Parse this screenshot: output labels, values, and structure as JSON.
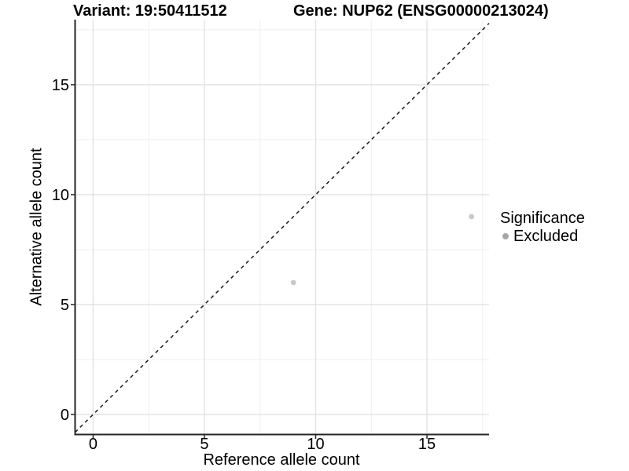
{
  "chart_data": {
    "type": "scatter",
    "title_left": "Variant: 19:50411512",
    "title_right": "Gene: NUP62 (ENSG00000213024)",
    "xlabel": "Reference allele count",
    "ylabel": "Alternative allele count",
    "xlim": [
      -0.81,
      17.79
    ],
    "ylim": [
      -0.91,
      17.96
    ],
    "xticks": [
      0,
      5,
      10,
      15
    ],
    "yticks": [
      0,
      5,
      10,
      15
    ],
    "minor_xticks": [
      2.5,
      7.5,
      12.5,
      17.5
    ],
    "minor_yticks": [
      2.5,
      7.5,
      12.5,
      17.5
    ],
    "grid": "major+minor",
    "points": [
      {
        "x": 9,
        "y": 6,
        "significance": "Excluded"
      },
      {
        "x": 17,
        "y": 9,
        "significance": "Excluded"
      }
    ],
    "reference_line": {
      "style": "dashed",
      "slope": 1,
      "intercept": 0
    },
    "legend": {
      "position": "right",
      "title": "Significance",
      "items": [
        {
          "label": "Excluded",
          "color": "#a6a6a6"
        }
      ]
    }
  },
  "colors": {
    "background": "#ffffff",
    "point": "#c9c9c9",
    "grid_major": "#e2e2e2",
    "grid_minor": "#efefef",
    "axis_line": "#262626",
    "tick_mark": "#262626",
    "tick_label": "#000000",
    "dashed_line": "#1a1a1a",
    "legend_dot": "#a6a6a6"
  }
}
